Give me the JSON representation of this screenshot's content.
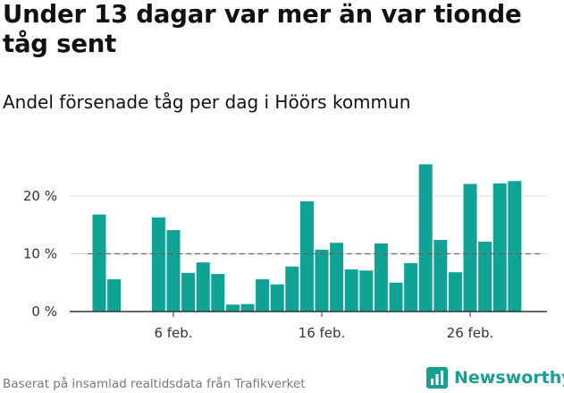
{
  "title": "Under 13 dagar var mer än var tionde tåg sent",
  "subtitle": "Andel försenade tåg per dag i Höörs kommun",
  "footer": "Baserat på insamlad realtidsdata från Trafikverket",
  "brand": {
    "name": "Newsworthy",
    "color": "#1a9e92",
    "icon": "newsworthy-logo-icon"
  },
  "colors": {
    "bar": "#0fa396",
    "reference_line": "#666666",
    "grid": "#d9d9d9",
    "axis": "#333333"
  },
  "chart_data": {
    "type": "bar",
    "x_unit": "day",
    "categories": [
      "1 feb.",
      "2 feb.",
      "3 feb.",
      "4 feb.",
      "5 feb.",
      "6 feb.",
      "7 feb.",
      "8 feb.",
      "9 feb.",
      "10 feb.",
      "11 feb.",
      "12 feb.",
      "13 feb.",
      "14 feb.",
      "15 feb.",
      "16 feb.",
      "17 feb.",
      "18 feb.",
      "19 feb.",
      "20 feb.",
      "21 feb.",
      "22 feb.",
      "23 feb.",
      "24 feb.",
      "25 feb.",
      "26 feb.",
      "27 feb.",
      "28 feb.",
      "29 feb."
    ],
    "values": [
      16.8,
      5.6,
      0,
      0,
      16.3,
      14.1,
      6.7,
      8.5,
      6.5,
      1.2,
      1.3,
      5.6,
      4.7,
      7.8,
      19.1,
      10.7,
      11.9,
      7.3,
      7.1,
      11.8,
      5.0,
      8.4,
      25.5,
      12.4,
      6.8,
      22.1,
      12.1,
      22.2,
      22.6
    ],
    "x_ticks": [
      "6 feb.",
      "16 feb.",
      "26 feb."
    ],
    "y_ticks": [
      {
        "value": 0,
        "label": "0 %"
      },
      {
        "value": 10,
        "label": "10 %"
      },
      {
        "value": 20,
        "label": "20 %"
      }
    ],
    "ylim": [
      0,
      28
    ],
    "reference_line": 10,
    "grid": true,
    "legend": "none"
  }
}
